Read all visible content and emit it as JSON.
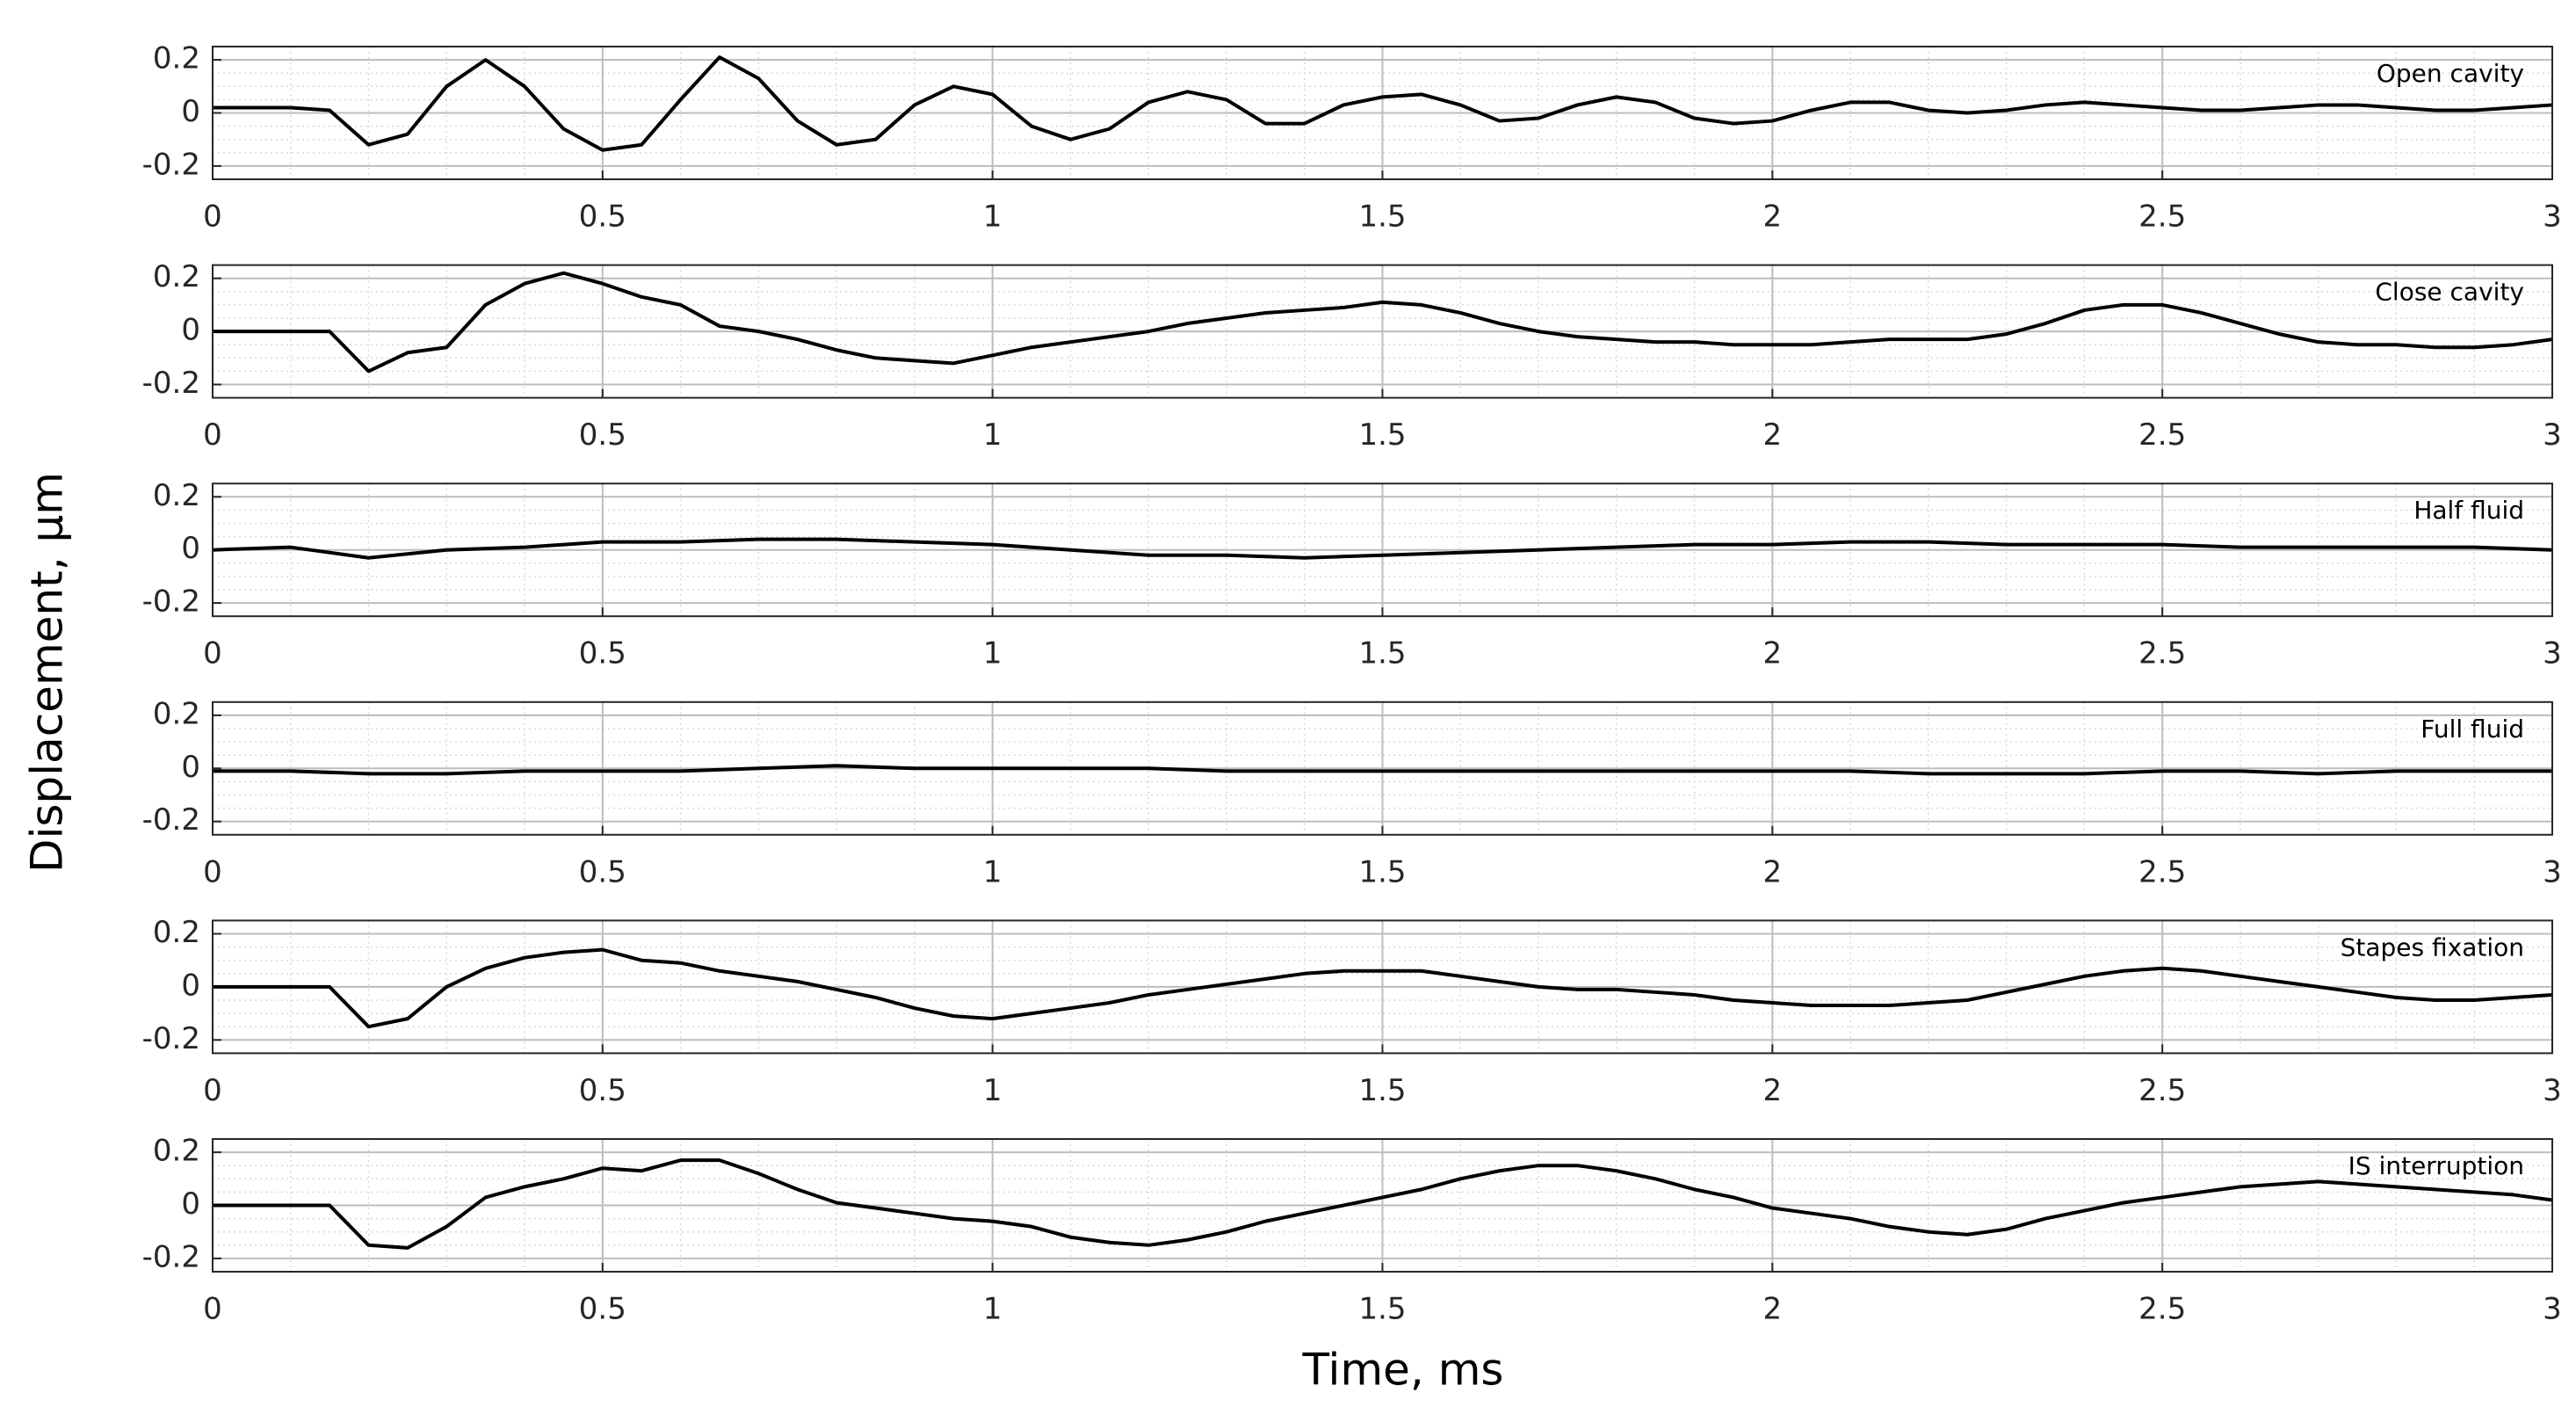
{
  "ylabel": "Displacement, µm",
  "xlabel": "Time, ms",
  "chart_data": [
    {
      "type": "line",
      "title": "Open cavity",
      "xlim": [
        0,
        3
      ],
      "ylim": [
        -0.25,
        0.25
      ],
      "xticks": [
        0,
        0.5,
        1,
        1.5,
        2,
        2.5,
        3
      ],
      "yticks": [
        -0.2,
        0,
        0.2
      ],
      "grid": true,
      "minor_grid": true,
      "x": [
        0,
        0.05,
        0.1,
        0.15,
        0.2,
        0.25,
        0.3,
        0.35,
        0.4,
        0.45,
        0.5,
        0.55,
        0.6,
        0.65,
        0.7,
        0.75,
        0.8,
        0.85,
        0.9,
        0.95,
        1,
        1.05,
        1.1,
        1.15,
        1.2,
        1.25,
        1.3,
        1.35,
        1.4,
        1.45,
        1.5,
        1.55,
        1.6,
        1.65,
        1.7,
        1.75,
        1.8,
        1.85,
        1.9,
        1.95,
        2,
        2.05,
        2.1,
        2.15,
        2.2,
        2.25,
        2.3,
        2.35,
        2.4,
        2.45,
        2.5,
        2.55,
        2.6,
        2.65,
        2.7,
        2.75,
        2.8,
        2.85,
        2.9,
        2.95,
        3
      ],
      "series": [
        {
          "color": "#000000",
          "values": [
            0.02,
            0.02,
            0.02,
            0.01,
            -0.12,
            -0.08,
            0.1,
            0.2,
            0.1,
            -0.06,
            -0.14,
            -0.12,
            0.05,
            0.21,
            0.13,
            -0.03,
            -0.12,
            -0.1,
            0.03,
            0.1,
            0.07,
            -0.05,
            -0.1,
            -0.06,
            0.04,
            0.08,
            0.05,
            -0.04,
            -0.04,
            0.03,
            0.06,
            0.07,
            0.03,
            -0.03,
            -0.02,
            0.03,
            0.06,
            0.04,
            -0.02,
            -0.04,
            -0.03,
            0.01,
            0.04,
            0.04,
            0.01,
            0,
            0.01,
            0.03,
            0.04,
            0.03,
            0.02,
            0.01,
            0.01,
            0.02,
            0.03,
            0.03,
            0.02,
            0.01,
            0.01,
            0.02,
            0.03
          ]
        }
      ]
    },
    {
      "type": "line",
      "title": "Close cavity",
      "xlim": [
        0,
        3
      ],
      "ylim": [
        -0.25,
        0.25
      ],
      "xticks": [
        0,
        0.5,
        1,
        1.5,
        2,
        2.5,
        3
      ],
      "yticks": [
        -0.2,
        0,
        0.2
      ],
      "grid": true,
      "minor_grid": true,
      "x": [
        0,
        0.05,
        0.1,
        0.15,
        0.2,
        0.25,
        0.3,
        0.35,
        0.4,
        0.45,
        0.5,
        0.55,
        0.6,
        0.65,
        0.7,
        0.75,
        0.8,
        0.85,
        0.9,
        0.95,
        1,
        1.05,
        1.1,
        1.15,
        1.2,
        1.25,
        1.3,
        1.35,
        1.4,
        1.45,
        1.5,
        1.55,
        1.6,
        1.65,
        1.7,
        1.75,
        1.8,
        1.85,
        1.9,
        1.95,
        2,
        2.05,
        2.1,
        2.15,
        2.2,
        2.25,
        2.3,
        2.35,
        2.4,
        2.45,
        2.5,
        2.55,
        2.6,
        2.65,
        2.7,
        2.75,
        2.8,
        2.85,
        2.9,
        2.95,
        3
      ],
      "series": [
        {
          "color": "#000000",
          "values": [
            0,
            0,
            0,
            0,
            -0.15,
            -0.08,
            -0.06,
            0.1,
            0.18,
            0.22,
            0.18,
            0.13,
            0.1,
            0.02,
            0,
            -0.03,
            -0.07,
            -0.1,
            -0.11,
            -0.12,
            -0.09,
            -0.06,
            -0.04,
            -0.02,
            0,
            0.03,
            0.05,
            0.07,
            0.08,
            0.09,
            0.11,
            0.1,
            0.07,
            0.03,
            0,
            -0.02,
            -0.03,
            -0.04,
            -0.04,
            -0.05,
            -0.05,
            -0.05,
            -0.04,
            -0.03,
            -0.03,
            -0.03,
            -0.01,
            0.03,
            0.08,
            0.1,
            0.1,
            0.07,
            0.03,
            -0.01,
            -0.04,
            -0.05,
            -0.05,
            -0.06,
            -0.06,
            -0.05,
            -0.03
          ]
        }
      ]
    },
    {
      "type": "line",
      "title": "Half fluid",
      "xlim": [
        0,
        3
      ],
      "ylim": [
        -0.25,
        0.25
      ],
      "xticks": [
        0,
        0.5,
        1,
        1.5,
        2,
        2.5,
        3
      ],
      "yticks": [
        -0.2,
        0,
        0.2
      ],
      "grid": true,
      "minor_grid": true,
      "x": [
        0,
        0.1,
        0.2,
        0.3,
        0.4,
        0.5,
        0.6,
        0.7,
        0.8,
        0.9,
        1,
        1.1,
        1.2,
        1.3,
        1.4,
        1.5,
        1.6,
        1.7,
        1.8,
        1.9,
        2,
        2.1,
        2.2,
        2.3,
        2.4,
        2.5,
        2.6,
        2.7,
        2.8,
        2.9,
        3
      ],
      "series": [
        {
          "color": "#000000",
          "values": [
            0,
            0.01,
            -0.03,
            0,
            0.01,
            0.03,
            0.03,
            0.04,
            0.04,
            0.03,
            0.02,
            0,
            -0.02,
            -0.02,
            -0.03,
            -0.02,
            -0.01,
            0,
            0.01,
            0.02,
            0.02,
            0.03,
            0.03,
            0.02,
            0.02,
            0.02,
            0.01,
            0.01,
            0.01,
            0.01,
            0
          ]
        }
      ]
    },
    {
      "type": "line",
      "title": "Full fluid",
      "xlim": [
        0,
        3
      ],
      "ylim": [
        -0.25,
        0.25
      ],
      "xticks": [
        0,
        0.5,
        1,
        1.5,
        2,
        2.5,
        3
      ],
      "yticks": [
        -0.2,
        0,
        0.2
      ],
      "grid": true,
      "minor_grid": true,
      "x": [
        0,
        0.1,
        0.2,
        0.3,
        0.4,
        0.5,
        0.6,
        0.7,
        0.8,
        0.9,
        1,
        1.1,
        1.2,
        1.3,
        1.4,
        1.5,
        1.6,
        1.7,
        1.8,
        1.9,
        2,
        2.1,
        2.2,
        2.3,
        2.4,
        2.5,
        2.6,
        2.7,
        2.8,
        2.9,
        3
      ],
      "series": [
        {
          "color": "#000000",
          "values": [
            -0.01,
            -0.01,
            -0.02,
            -0.02,
            -0.01,
            -0.01,
            -0.01,
            0,
            0.01,
            0,
            0,
            0,
            0,
            -0.01,
            -0.01,
            -0.01,
            -0.01,
            -0.01,
            -0.01,
            -0.01,
            -0.01,
            -0.01,
            -0.02,
            -0.02,
            -0.02,
            -0.01,
            -0.01,
            -0.02,
            -0.01,
            -0.01,
            -0.01
          ]
        }
      ]
    },
    {
      "type": "line",
      "title": "Stapes fixation",
      "xlim": [
        0,
        3
      ],
      "ylim": [
        -0.25,
        0.25
      ],
      "xticks": [
        0,
        0.5,
        1,
        1.5,
        2,
        2.5,
        3
      ],
      "yticks": [
        -0.2,
        0,
        0.2
      ],
      "grid": true,
      "minor_grid": true,
      "x": [
        0,
        0.05,
        0.1,
        0.15,
        0.2,
        0.25,
        0.3,
        0.35,
        0.4,
        0.45,
        0.5,
        0.55,
        0.6,
        0.65,
        0.7,
        0.75,
        0.8,
        0.85,
        0.9,
        0.95,
        1,
        1.05,
        1.1,
        1.15,
        1.2,
        1.25,
        1.3,
        1.35,
        1.4,
        1.45,
        1.5,
        1.55,
        1.6,
        1.65,
        1.7,
        1.75,
        1.8,
        1.85,
        1.9,
        1.95,
        2,
        2.05,
        2.1,
        2.15,
        2.2,
        2.25,
        2.3,
        2.35,
        2.4,
        2.45,
        2.5,
        2.55,
        2.6,
        2.65,
        2.7,
        2.75,
        2.8,
        2.85,
        2.9,
        2.95,
        3
      ],
      "series": [
        {
          "color": "#000000",
          "values": [
            0,
            0,
            0,
            0,
            -0.15,
            -0.12,
            0,
            0.07,
            0.11,
            0.13,
            0.14,
            0.1,
            0.09,
            0.06,
            0.04,
            0.02,
            -0.01,
            -0.04,
            -0.08,
            -0.11,
            -0.12,
            -0.1,
            -0.08,
            -0.06,
            -0.03,
            -0.01,
            0.01,
            0.03,
            0.05,
            0.06,
            0.06,
            0.06,
            0.04,
            0.02,
            0,
            -0.01,
            -0.01,
            -0.02,
            -0.03,
            -0.05,
            -0.06,
            -0.07,
            -0.07,
            -0.07,
            -0.06,
            -0.05,
            -0.02,
            0.01,
            0.04,
            0.06,
            0.07,
            0.06,
            0.04,
            0.02,
            0,
            -0.02,
            -0.04,
            -0.05,
            -0.05,
            -0.04,
            -0.03
          ]
        }
      ]
    },
    {
      "type": "line",
      "title": "IS interruption",
      "xlim": [
        0,
        3
      ],
      "ylim": [
        -0.25,
        0.25
      ],
      "xticks": [
        0,
        0.5,
        1,
        1.5,
        2,
        2.5,
        3
      ],
      "yticks": [
        -0.2,
        0,
        0.2
      ],
      "grid": true,
      "minor_grid": true,
      "x": [
        0,
        0.05,
        0.1,
        0.15,
        0.2,
        0.25,
        0.3,
        0.35,
        0.4,
        0.45,
        0.5,
        0.55,
        0.6,
        0.65,
        0.7,
        0.75,
        0.8,
        0.85,
        0.9,
        0.95,
        1,
        1.05,
        1.1,
        1.15,
        1.2,
        1.25,
        1.3,
        1.35,
        1.4,
        1.45,
        1.5,
        1.55,
        1.6,
        1.65,
        1.7,
        1.75,
        1.8,
        1.85,
        1.9,
        1.95,
        2,
        2.05,
        2.1,
        2.15,
        2.2,
        2.25,
        2.3,
        2.35,
        2.4,
        2.45,
        2.5,
        2.55,
        2.6,
        2.65,
        2.7,
        2.75,
        2.8,
        2.85,
        2.9,
        2.95,
        3
      ],
      "series": [
        {
          "color": "#000000",
          "values": [
            0,
            0,
            0,
            0,
            -0.15,
            -0.16,
            -0.08,
            0.03,
            0.07,
            0.1,
            0.14,
            0.13,
            0.17,
            0.17,
            0.12,
            0.06,
            0.01,
            -0.01,
            -0.03,
            -0.05,
            -0.06,
            -0.08,
            -0.12,
            -0.14,
            -0.15,
            -0.13,
            -0.1,
            -0.06,
            -0.03,
            0,
            0.03,
            0.06,
            0.1,
            0.13,
            0.15,
            0.15,
            0.13,
            0.1,
            0.06,
            0.03,
            -0.01,
            -0.03,
            -0.05,
            -0.08,
            -0.1,
            -0.11,
            -0.09,
            -0.05,
            -0.02,
            0.01,
            0.03,
            0.05,
            0.07,
            0.08,
            0.09,
            0.08,
            0.07,
            0.06,
            0.05,
            0.04,
            0.02
          ]
        }
      ]
    }
  ]
}
